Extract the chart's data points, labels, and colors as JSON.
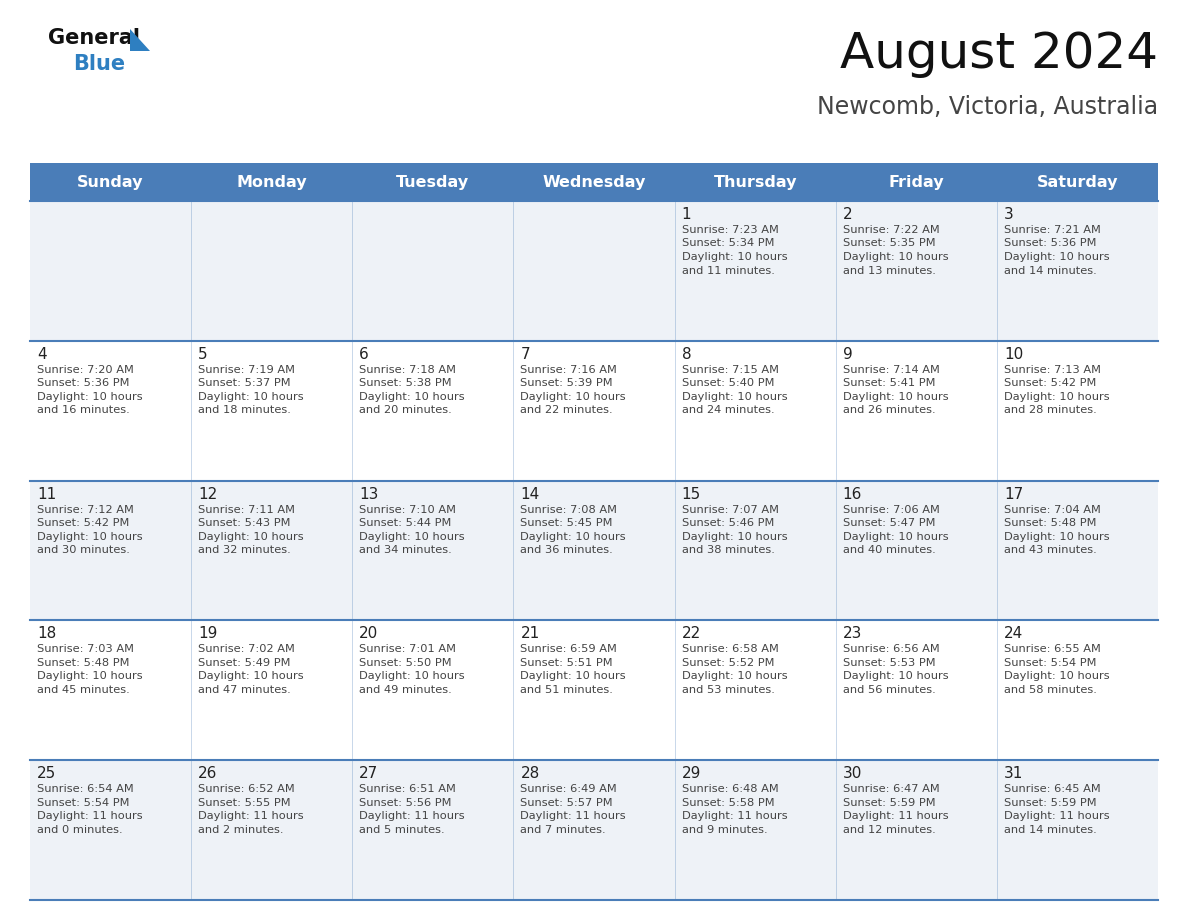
{
  "title": "August 2024",
  "subtitle": "Newcomb, Victoria, Australia",
  "days_of_week": [
    "Sunday",
    "Monday",
    "Tuesday",
    "Wednesday",
    "Thursday",
    "Friday",
    "Saturday"
  ],
  "header_bg": "#4a7db8",
  "header_text": "#ffffff",
  "row_bg_odd": "#eef2f7",
  "row_bg_even": "#ffffff",
  "cell_border": "#4a7db8",
  "day_number_color": "#222222",
  "text_color": "#444444",
  "title_color": "#111111",
  "subtitle_color": "#444444",
  "logo_general_color": "#111111",
  "logo_blue_color": "#2e7fc1",
  "weeks": [
    [
      {
        "day": "",
        "sunrise": "",
        "sunset": "",
        "daylight": ""
      },
      {
        "day": "",
        "sunrise": "",
        "sunset": "",
        "daylight": ""
      },
      {
        "day": "",
        "sunrise": "",
        "sunset": "",
        "daylight": ""
      },
      {
        "day": "",
        "sunrise": "",
        "sunset": "",
        "daylight": ""
      },
      {
        "day": "1",
        "sunrise": "Sunrise: 7:23 AM",
        "sunset": "Sunset: 5:34 PM",
        "daylight": "Daylight: 10 hours\nand 11 minutes."
      },
      {
        "day": "2",
        "sunrise": "Sunrise: 7:22 AM",
        "sunset": "Sunset: 5:35 PM",
        "daylight": "Daylight: 10 hours\nand 13 minutes."
      },
      {
        "day": "3",
        "sunrise": "Sunrise: 7:21 AM",
        "sunset": "Sunset: 5:36 PM",
        "daylight": "Daylight: 10 hours\nand 14 minutes."
      }
    ],
    [
      {
        "day": "4",
        "sunrise": "Sunrise: 7:20 AM",
        "sunset": "Sunset: 5:36 PM",
        "daylight": "Daylight: 10 hours\nand 16 minutes."
      },
      {
        "day": "5",
        "sunrise": "Sunrise: 7:19 AM",
        "sunset": "Sunset: 5:37 PM",
        "daylight": "Daylight: 10 hours\nand 18 minutes."
      },
      {
        "day": "6",
        "sunrise": "Sunrise: 7:18 AM",
        "sunset": "Sunset: 5:38 PM",
        "daylight": "Daylight: 10 hours\nand 20 minutes."
      },
      {
        "day": "7",
        "sunrise": "Sunrise: 7:16 AM",
        "sunset": "Sunset: 5:39 PM",
        "daylight": "Daylight: 10 hours\nand 22 minutes."
      },
      {
        "day": "8",
        "sunrise": "Sunrise: 7:15 AM",
        "sunset": "Sunset: 5:40 PM",
        "daylight": "Daylight: 10 hours\nand 24 minutes."
      },
      {
        "day": "9",
        "sunrise": "Sunrise: 7:14 AM",
        "sunset": "Sunset: 5:41 PM",
        "daylight": "Daylight: 10 hours\nand 26 minutes."
      },
      {
        "day": "10",
        "sunrise": "Sunrise: 7:13 AM",
        "sunset": "Sunset: 5:42 PM",
        "daylight": "Daylight: 10 hours\nand 28 minutes."
      }
    ],
    [
      {
        "day": "11",
        "sunrise": "Sunrise: 7:12 AM",
        "sunset": "Sunset: 5:42 PM",
        "daylight": "Daylight: 10 hours\nand 30 minutes."
      },
      {
        "day": "12",
        "sunrise": "Sunrise: 7:11 AM",
        "sunset": "Sunset: 5:43 PM",
        "daylight": "Daylight: 10 hours\nand 32 minutes."
      },
      {
        "day": "13",
        "sunrise": "Sunrise: 7:10 AM",
        "sunset": "Sunset: 5:44 PM",
        "daylight": "Daylight: 10 hours\nand 34 minutes."
      },
      {
        "day": "14",
        "sunrise": "Sunrise: 7:08 AM",
        "sunset": "Sunset: 5:45 PM",
        "daylight": "Daylight: 10 hours\nand 36 minutes."
      },
      {
        "day": "15",
        "sunrise": "Sunrise: 7:07 AM",
        "sunset": "Sunset: 5:46 PM",
        "daylight": "Daylight: 10 hours\nand 38 minutes."
      },
      {
        "day": "16",
        "sunrise": "Sunrise: 7:06 AM",
        "sunset": "Sunset: 5:47 PM",
        "daylight": "Daylight: 10 hours\nand 40 minutes."
      },
      {
        "day": "17",
        "sunrise": "Sunrise: 7:04 AM",
        "sunset": "Sunset: 5:48 PM",
        "daylight": "Daylight: 10 hours\nand 43 minutes."
      }
    ],
    [
      {
        "day": "18",
        "sunrise": "Sunrise: 7:03 AM",
        "sunset": "Sunset: 5:48 PM",
        "daylight": "Daylight: 10 hours\nand 45 minutes."
      },
      {
        "day": "19",
        "sunrise": "Sunrise: 7:02 AM",
        "sunset": "Sunset: 5:49 PM",
        "daylight": "Daylight: 10 hours\nand 47 minutes."
      },
      {
        "day": "20",
        "sunrise": "Sunrise: 7:01 AM",
        "sunset": "Sunset: 5:50 PM",
        "daylight": "Daylight: 10 hours\nand 49 minutes."
      },
      {
        "day": "21",
        "sunrise": "Sunrise: 6:59 AM",
        "sunset": "Sunset: 5:51 PM",
        "daylight": "Daylight: 10 hours\nand 51 minutes."
      },
      {
        "day": "22",
        "sunrise": "Sunrise: 6:58 AM",
        "sunset": "Sunset: 5:52 PM",
        "daylight": "Daylight: 10 hours\nand 53 minutes."
      },
      {
        "day": "23",
        "sunrise": "Sunrise: 6:56 AM",
        "sunset": "Sunset: 5:53 PM",
        "daylight": "Daylight: 10 hours\nand 56 minutes."
      },
      {
        "day": "24",
        "sunrise": "Sunrise: 6:55 AM",
        "sunset": "Sunset: 5:54 PM",
        "daylight": "Daylight: 10 hours\nand 58 minutes."
      }
    ],
    [
      {
        "day": "25",
        "sunrise": "Sunrise: 6:54 AM",
        "sunset": "Sunset: 5:54 PM",
        "daylight": "Daylight: 11 hours\nand 0 minutes."
      },
      {
        "day": "26",
        "sunrise": "Sunrise: 6:52 AM",
        "sunset": "Sunset: 5:55 PM",
        "daylight": "Daylight: 11 hours\nand 2 minutes."
      },
      {
        "day": "27",
        "sunrise": "Sunrise: 6:51 AM",
        "sunset": "Sunset: 5:56 PM",
        "daylight": "Daylight: 11 hours\nand 5 minutes."
      },
      {
        "day": "28",
        "sunrise": "Sunrise: 6:49 AM",
        "sunset": "Sunset: 5:57 PM",
        "daylight": "Daylight: 11 hours\nand 7 minutes."
      },
      {
        "day": "29",
        "sunrise": "Sunrise: 6:48 AM",
        "sunset": "Sunset: 5:58 PM",
        "daylight": "Daylight: 11 hours\nand 9 minutes."
      },
      {
        "day": "30",
        "sunrise": "Sunrise: 6:47 AM",
        "sunset": "Sunset: 5:59 PM",
        "daylight": "Daylight: 11 hours\nand 12 minutes."
      },
      {
        "day": "31",
        "sunrise": "Sunrise: 6:45 AM",
        "sunset": "Sunset: 5:59 PM",
        "daylight": "Daylight: 11 hours\nand 14 minutes."
      }
    ]
  ]
}
